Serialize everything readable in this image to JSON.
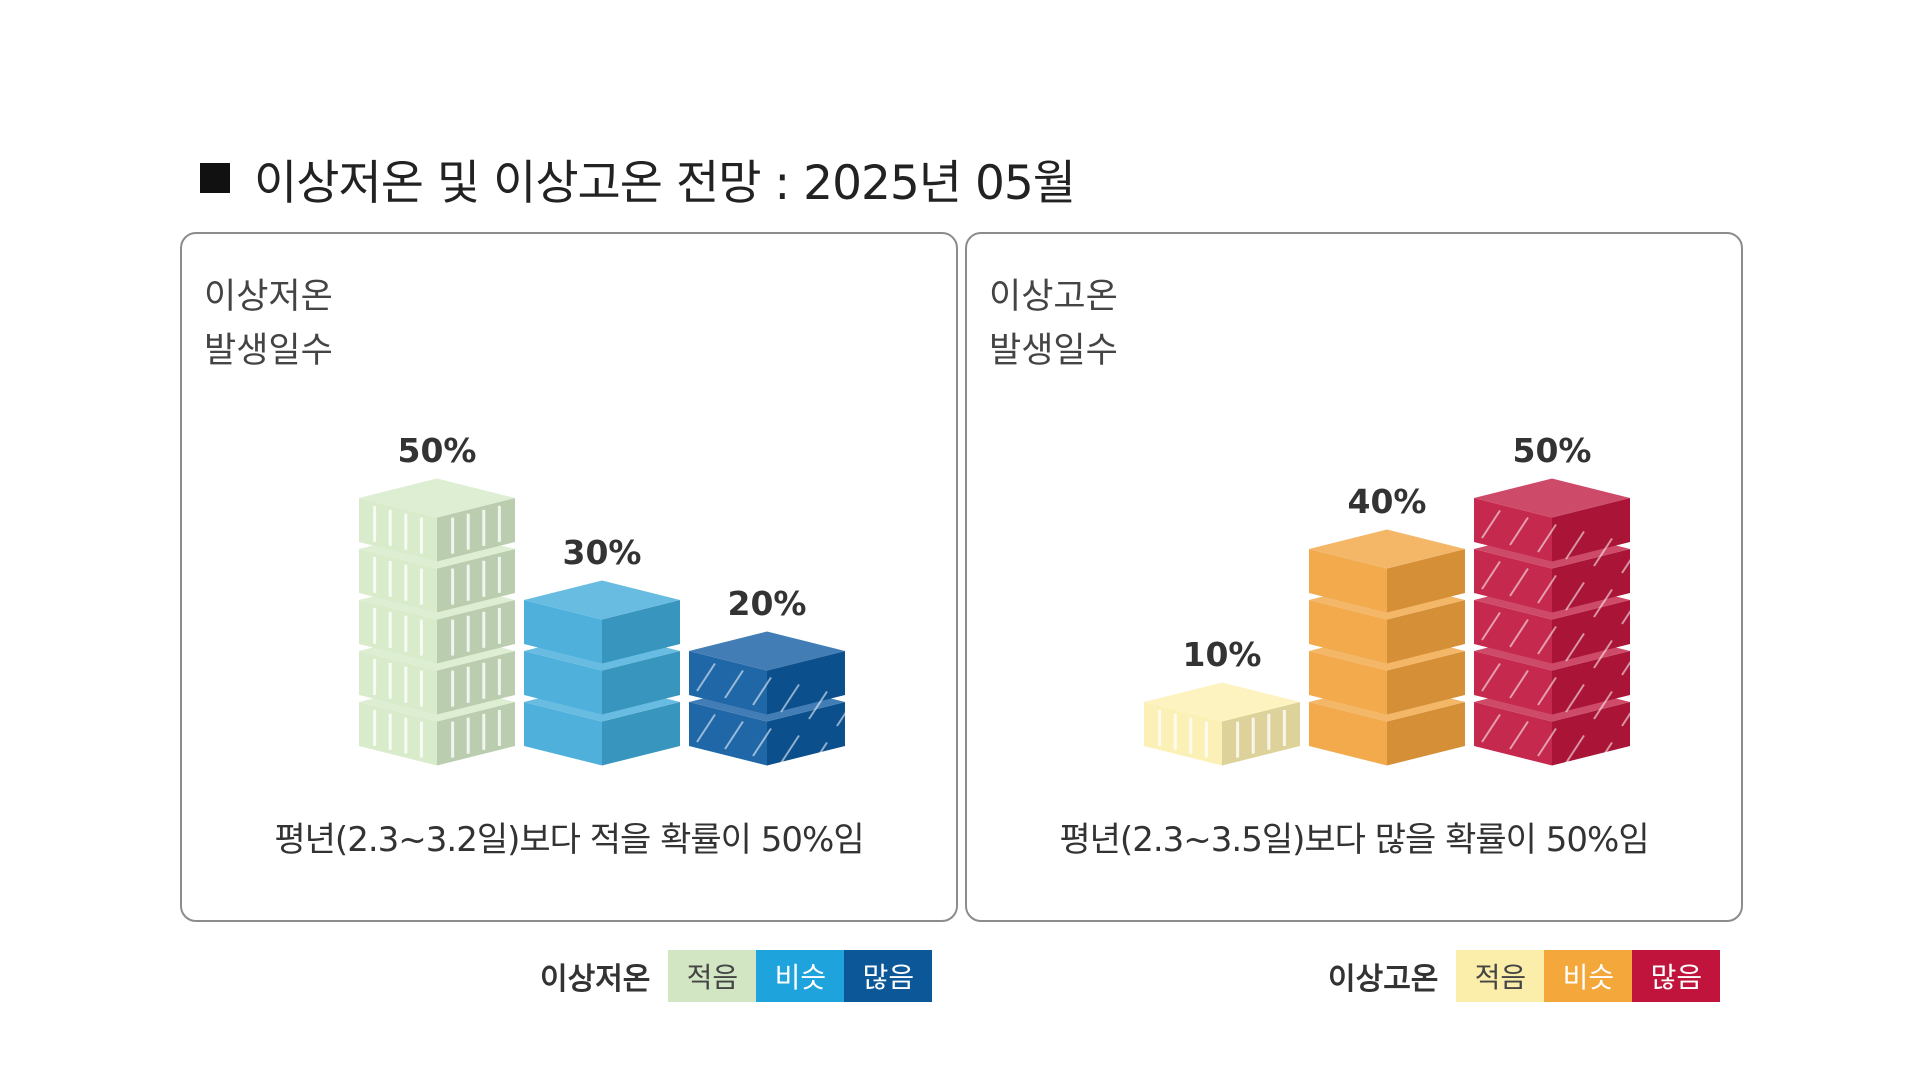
{
  "title": "이상저온 및 이상고온 전망 : 2025년 05월",
  "panels": [
    {
      "label_line1": "이상저온",
      "label_line2": "발생일수",
      "caption": "평년(2.3~3.2일)보다 적을 확률이 50%임"
    },
    {
      "label_line1": "이상고온",
      "label_line2": "발생일수",
      "caption": "평년(2.3~3.5일)보다 많을 확률이 50%임"
    }
  ],
  "legends": [
    {
      "title": "이상저온",
      "items": [
        {
          "label": "적음",
          "color": "#d3e6c4",
          "text_color": "#444444"
        },
        {
          "label": "비슷",
          "color": "#1fa3dd",
          "text_color": "#ffffff"
        },
        {
          "label": "많음",
          "color": "#0c5797",
          "text_color": "#ffffff"
        }
      ]
    },
    {
      "title": "이상고온",
      "items": [
        {
          "label": "적음",
          "color": "#fbeeab",
          "text_color": "#444444"
        },
        {
          "label": "비슷",
          "color": "#f4a83c",
          "text_color": "#ffffff"
        },
        {
          "label": "많음",
          "color": "#c0143c",
          "text_color": "#ffffff"
        }
      ]
    }
  ],
  "chart_data": [
    {
      "type": "bar",
      "categories": [
        "적음",
        "비슷",
        "많음"
      ],
      "values": [
        50,
        30,
        20
      ],
      "value_labels": [
        "50%",
        "30%",
        "20%"
      ],
      "colors": [
        "#d5e9c7",
        "#3fa9d8",
        "#0d5aa0"
      ],
      "style": "stacked-3d-blocks",
      "unit": "%"
    },
    {
      "type": "bar",
      "categories": [
        "적음",
        "비슷",
        "많음"
      ],
      "values": [
        10,
        40,
        50
      ],
      "value_labels": [
        "10%",
        "40%",
        "50%"
      ],
      "colors": [
        "#fbefaf",
        "#f1a33e",
        "#c0173f"
      ],
      "style": "stacked-3d-blocks",
      "unit": "%"
    }
  ]
}
